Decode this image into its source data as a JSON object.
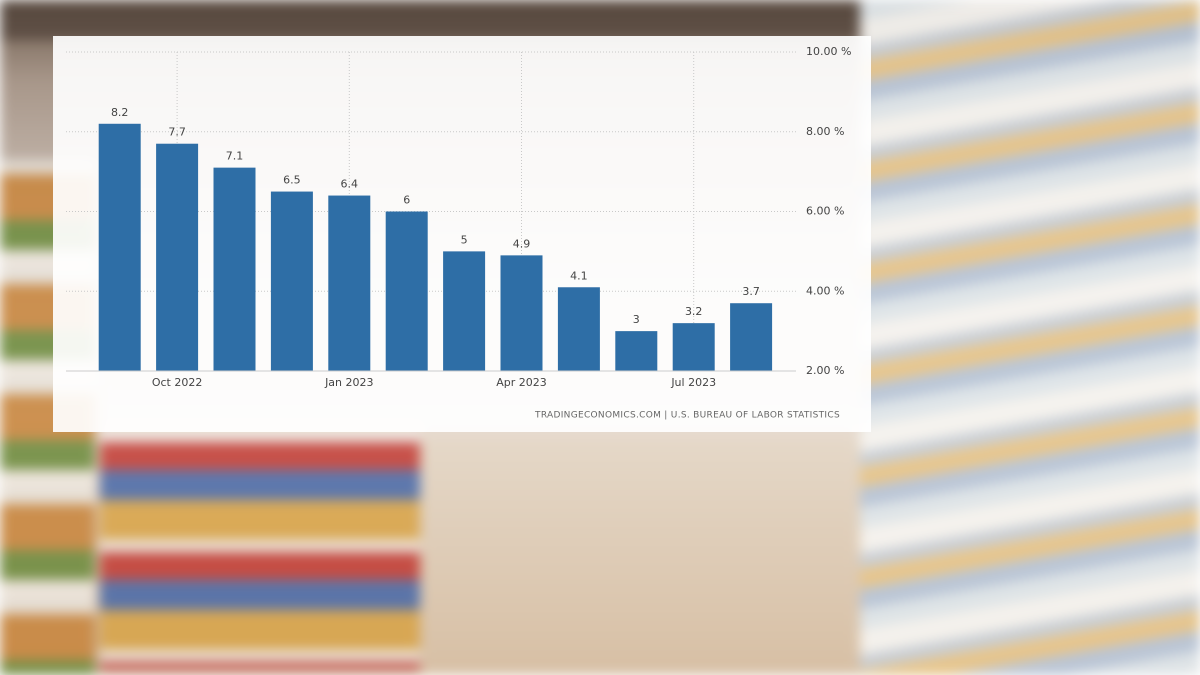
{
  "chart_data": {
    "type": "bar",
    "source": "TRADINGECONOMICS.COM | U.S. BUREAU OF LABOR STATISTICS",
    "categories": [
      null,
      "Oct 2022",
      null,
      null,
      "Jan 2023",
      null,
      null,
      "Apr 2023",
      null,
      null,
      "Jul 2023",
      null
    ],
    "values": [
      8.2,
      7.7,
      7.1,
      6.5,
      6.4,
      6,
      5,
      4.9,
      4.1,
      3,
      3.2,
      3.7
    ],
    "color": "#2e6ea6",
    "ylim": [
      2,
      10
    ],
    "yticks": [
      {
        "value": 2,
        "label": "2.00 %"
      },
      {
        "value": 4,
        "label": "4.00 %"
      },
      {
        "value": 6,
        "label": "6.00 %"
      },
      {
        "value": 8,
        "label": "8.00 %"
      },
      {
        "value": 10,
        "label": "10.00 %"
      }
    ],
    "grid": true
  }
}
